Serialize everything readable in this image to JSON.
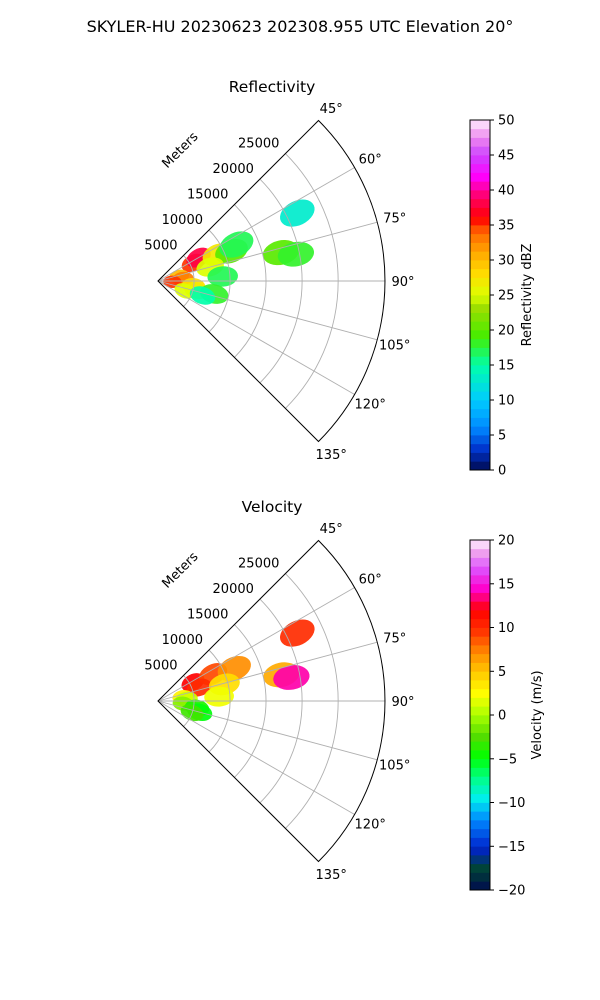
{
  "suptitle": "SKYLER-HU  20230623  202308.955 UTC Elevation 20°",
  "panels": [
    {
      "title": "Reflectivity",
      "range_label": "Meters",
      "colorbar": {
        "label": "Reflectivity dBZ",
        "min": 0,
        "max": 50,
        "ticks": [
          "0",
          "5",
          "10",
          "15",
          "20",
          "25",
          "30",
          "35",
          "40",
          "45",
          "50"
        ]
      }
    },
    {
      "title": "Velocity",
      "range_label": "Meters",
      "colorbar": {
        "label": "Velocity (m/s)",
        "min": -20,
        "max": 20,
        "ticks": [
          "−20",
          "−15",
          "−10",
          "−5",
          "0",
          "5",
          "10",
          "15",
          "20"
        ]
      }
    }
  ],
  "chart_data": [
    {
      "type": "polar-sector",
      "title": "Reflectivity",
      "theta_range_deg": [
        45,
        135
      ],
      "theta_ticks": [
        "45°",
        "60°",
        "75°",
        "90°",
        "105°",
        "120°",
        "135°"
      ],
      "theta_values": [
        45,
        60,
        75,
        90,
        105,
        120,
        135
      ],
      "r_max_m": 31500,
      "r_ticks": [
        "5000",
        "10000",
        "15000",
        "20000",
        "25000"
      ],
      "r_values": [
        5000,
        10000,
        15000,
        20000,
        25000
      ],
      "grid": true,
      "echoes": [
        {
          "theta_deg": 63,
          "r_m": 5500,
          "value": 35
        },
        {
          "theta_deg": 60,
          "r_m": 6500,
          "value": 38
        },
        {
          "theta_deg": 66,
          "r_m": 9000,
          "value": 27
        },
        {
          "theta_deg": 68,
          "r_m": 11000,
          "value": 20
        },
        {
          "theta_deg": 65,
          "r_m": 12000,
          "value": 17
        },
        {
          "theta_deg": 75,
          "r_m": 7500,
          "value": 25
        },
        {
          "theta_deg": 78,
          "r_m": 3000,
          "value": 30
        },
        {
          "theta_deg": 85,
          "r_m": 3500,
          "value": 33
        },
        {
          "theta_deg": 86,
          "r_m": 9000,
          "value": 17
        },
        {
          "theta_deg": 93,
          "r_m": 2000,
          "value": 35
        },
        {
          "theta_deg": 98,
          "r_m": 5000,
          "value": 28
        },
        {
          "theta_deg": 104,
          "r_m": 5500,
          "value": 27
        },
        {
          "theta_deg": 103,
          "r_m": 8000,
          "value": 18
        },
        {
          "theta_deg": 110,
          "r_m": 4000,
          "value": 25
        },
        {
          "theta_deg": 108,
          "r_m": 6500,
          "value": 15
        },
        {
          "theta_deg": 77,
          "r_m": 17500,
          "value": 20
        },
        {
          "theta_deg": 79,
          "r_m": 19500,
          "value": 18
        },
        {
          "theta_deg": 64,
          "r_m": 21500,
          "value": 13
        }
      ]
    },
    {
      "type": "polar-sector",
      "title": "Velocity",
      "theta_range_deg": [
        45,
        135
      ],
      "theta_ticks": [
        "45°",
        "60°",
        "75°",
        "90°",
        "105°",
        "120°",
        "135°"
      ],
      "theta_values": [
        45,
        60,
        75,
        90,
        105,
        120,
        135
      ],
      "r_max_m": 31500,
      "r_ticks": [
        "5000",
        "10000",
        "15000",
        "20000",
        "25000"
      ],
      "r_values": [
        5000,
        10000,
        15000,
        20000,
        25000
      ],
      "grid": true,
      "echoes": [
        {
          "theta_deg": 62,
          "r_m": 5500,
          "value": 12
        },
        {
          "theta_deg": 64,
          "r_m": 8500,
          "value": 9
        },
        {
          "theta_deg": 67,
          "r_m": 11500,
          "value": 7
        },
        {
          "theta_deg": 72,
          "r_m": 6000,
          "value": 10
        },
        {
          "theta_deg": 76,
          "r_m": 9500,
          "value": 4
        },
        {
          "theta_deg": 81,
          "r_m": 3500,
          "value": 3
        },
        {
          "theta_deg": 86,
          "r_m": 4000,
          "value": 1
        },
        {
          "theta_deg": 86,
          "r_m": 8500,
          "value": 2
        },
        {
          "theta_deg": 96,
          "r_m": 3500,
          "value": -1
        },
        {
          "theta_deg": 100,
          "r_m": 5500,
          "value": -4
        },
        {
          "theta_deg": 105,
          "r_m": 6000,
          "value": -5
        },
        {
          "theta_deg": 109,
          "r_m": 5000,
          "value": -3
        },
        {
          "theta_deg": 78,
          "r_m": 17500,
          "value": 6
        },
        {
          "theta_deg": 80,
          "r_m": 18800,
          "value": 14
        },
        {
          "theta_deg": 64,
          "r_m": 21500,
          "value": 10
        }
      ]
    }
  ]
}
